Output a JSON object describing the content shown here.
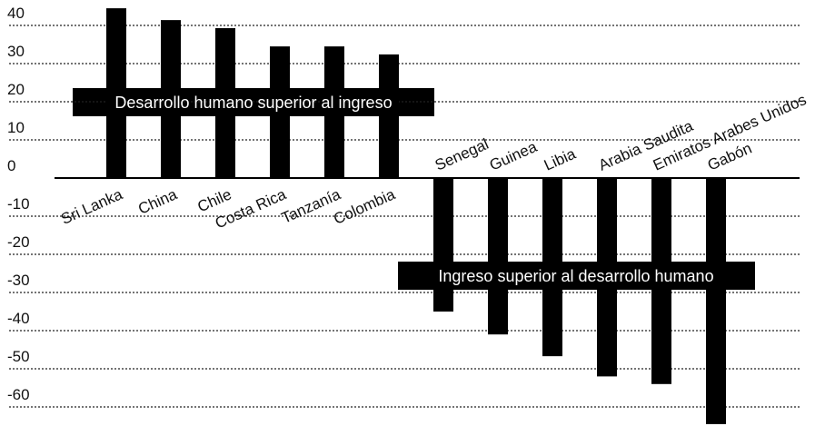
{
  "chart_data": {
    "type": "bar",
    "categories": [
      "Sri Lanka",
      "China",
      "Chile",
      "Costa Rica",
      "Tanzanía",
      "Colombia",
      "Senegal",
      "Guinea",
      "Libia",
      "Arabia Saudita",
      "Emiratos Arabes Unidos",
      "Gabón"
    ],
    "values": [
      44.5,
      41.4,
      39.3,
      34.5,
      34.5,
      32.4,
      -35,
      -41,
      -46.7,
      -52,
      -54,
      -64.5
    ],
    "color": "#000000",
    "ylim": [
      -65,
      45
    ],
    "yticks": [
      40,
      30,
      20,
      10,
      0,
      -10,
      -20,
      -30,
      -40,
      -50,
      -60
    ],
    "grid": true,
    "annotations": [
      "Desarrollo humano superior al ingreso",
      "Ingreso superior al desarrollo humano"
    ]
  }
}
